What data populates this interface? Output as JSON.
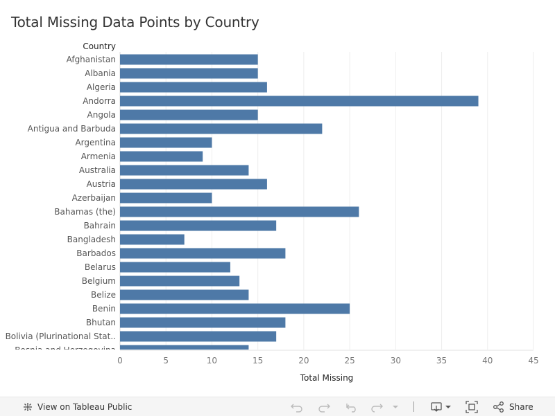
{
  "title": "Total Missing Data Points by Country",
  "colors": {
    "bar": "#4e79a7",
    "grid": "#eeeeee",
    "axis_text": "#777777",
    "label_text": "#555555",
    "header_text": "#222222"
  },
  "toolbar": {
    "view_label": "View on Tableau Public",
    "share_label": "Share",
    "icons": [
      "tableau-icon",
      "undo-icon",
      "redo-icon",
      "revert-icon",
      "refresh-icon",
      "pause-dropdown-icon",
      "download-icon",
      "fullscreen-icon",
      "share-icon"
    ]
  },
  "chart_data": {
    "type": "bar",
    "orientation": "horizontal",
    "row_header": "Country",
    "xlabel": "Total Missing",
    "xlim": [
      0,
      45
    ],
    "xticks": [
      0,
      5,
      10,
      15,
      20,
      25,
      30,
      35,
      40,
      45
    ],
    "grid": true,
    "categories": [
      "Afghanistan",
      "Albania",
      "Algeria",
      "Andorra",
      "Angola",
      "Antigua and Barbuda",
      "Argentina",
      "Armenia",
      "Australia",
      "Austria",
      "Azerbaijan",
      "Bahamas (the)",
      "Bahrain",
      "Bangladesh",
      "Barbados",
      "Belarus",
      "Belgium",
      "Belize",
      "Benin",
      "Bhutan",
      "Bolivia (Plurinational Stat..",
      "Bosnia and Herzegovina"
    ],
    "values": [
      15,
      15,
      16,
      39,
      15,
      22,
      10,
      9,
      14,
      16,
      10,
      26,
      17,
      7,
      18,
      12,
      13,
      14,
      25,
      18,
      17,
      14
    ]
  }
}
